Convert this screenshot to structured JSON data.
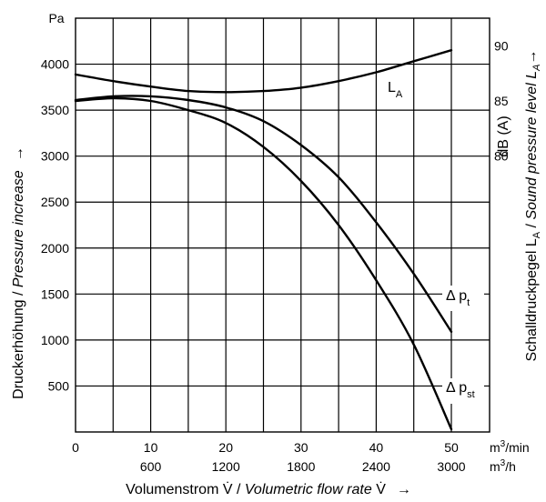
{
  "chart_data": {
    "type": "line",
    "x_axis": {
      "min": 0,
      "max": 50,
      "step": 10,
      "unit": "m³/min",
      "ticks_primary": [
        "0",
        "10",
        "20",
        "30",
        "40",
        "50"
      ],
      "ticks_secondary": [
        "",
        "600",
        "1200",
        "1800",
        "2400",
        "3000"
      ],
      "unit_primary_base": "m",
      "unit_primary_sup": "3",
      "unit_primary_rest": "/min",
      "unit_secondary_base": "m",
      "unit_secondary_sup": "3",
      "unit_secondary_rest": "/h",
      "label_plain": "Volumenstrom V̇ / ",
      "label_italic": "Volumetric flow rate",
      "label_tail": " V̇",
      "arrow": "→"
    },
    "y_axis_left": {
      "min": 0,
      "max": 4500,
      "unit": "Pa",
      "tick_values": [
        500,
        1000,
        1500,
        2000,
        2500,
        3000,
        3500,
        4000
      ],
      "tick_labels": [
        "500",
        "1000",
        "1500",
        "2000",
        "2500",
        "3000",
        "3500",
        "4000"
      ],
      "label_plain": "Druckerhöhung / ",
      "label_italic": "Pressure increase",
      "arrow": "→"
    },
    "y_axis_right": {
      "min": 55,
      "max": 92.5,
      "tick_values": [
        80,
        85,
        90
      ],
      "tick_labels": [
        "80",
        "85",
        "90"
      ],
      "unit_label": "dB (A)",
      "label_plain": "Schalldruckpegel L",
      "label_sub": "A",
      "label_sep": " / ",
      "label_italic": "Sound pressure level L",
      "label_italic_sub": "A",
      "arrow": "→"
    },
    "grid": true,
    "series": [
      {
        "name": "L_A",
        "label_main": "L",
        "label_sub": "A",
        "axis": "right",
        "x": [
          0,
          5,
          10,
          15,
          20,
          25,
          30,
          35,
          40,
          45,
          50
        ],
        "y": [
          87.4,
          86.8,
          86.3,
          85.9,
          85.8,
          85.9,
          86.2,
          86.8,
          87.6,
          88.6,
          89.6
        ]
      },
      {
        "name": "Δ p_t",
        "label_main": "Δ p",
        "label_sub": "t",
        "axis": "left",
        "x": [
          0,
          5,
          10,
          15,
          20,
          25,
          30,
          35,
          40,
          45,
          50
        ],
        "y": [
          3610,
          3650,
          3650,
          3610,
          3530,
          3380,
          3120,
          2770,
          2280,
          1720,
          1090
        ]
      },
      {
        "name": "Δ p_st",
        "label_main": "Δ p",
        "label_sub": "st",
        "axis": "left",
        "x": [
          0,
          5,
          10,
          15,
          20,
          25,
          30,
          35,
          40,
          45,
          50
        ],
        "y": [
          3600,
          3630,
          3600,
          3500,
          3360,
          3100,
          2730,
          2250,
          1650,
          950,
          30
        ]
      }
    ]
  }
}
